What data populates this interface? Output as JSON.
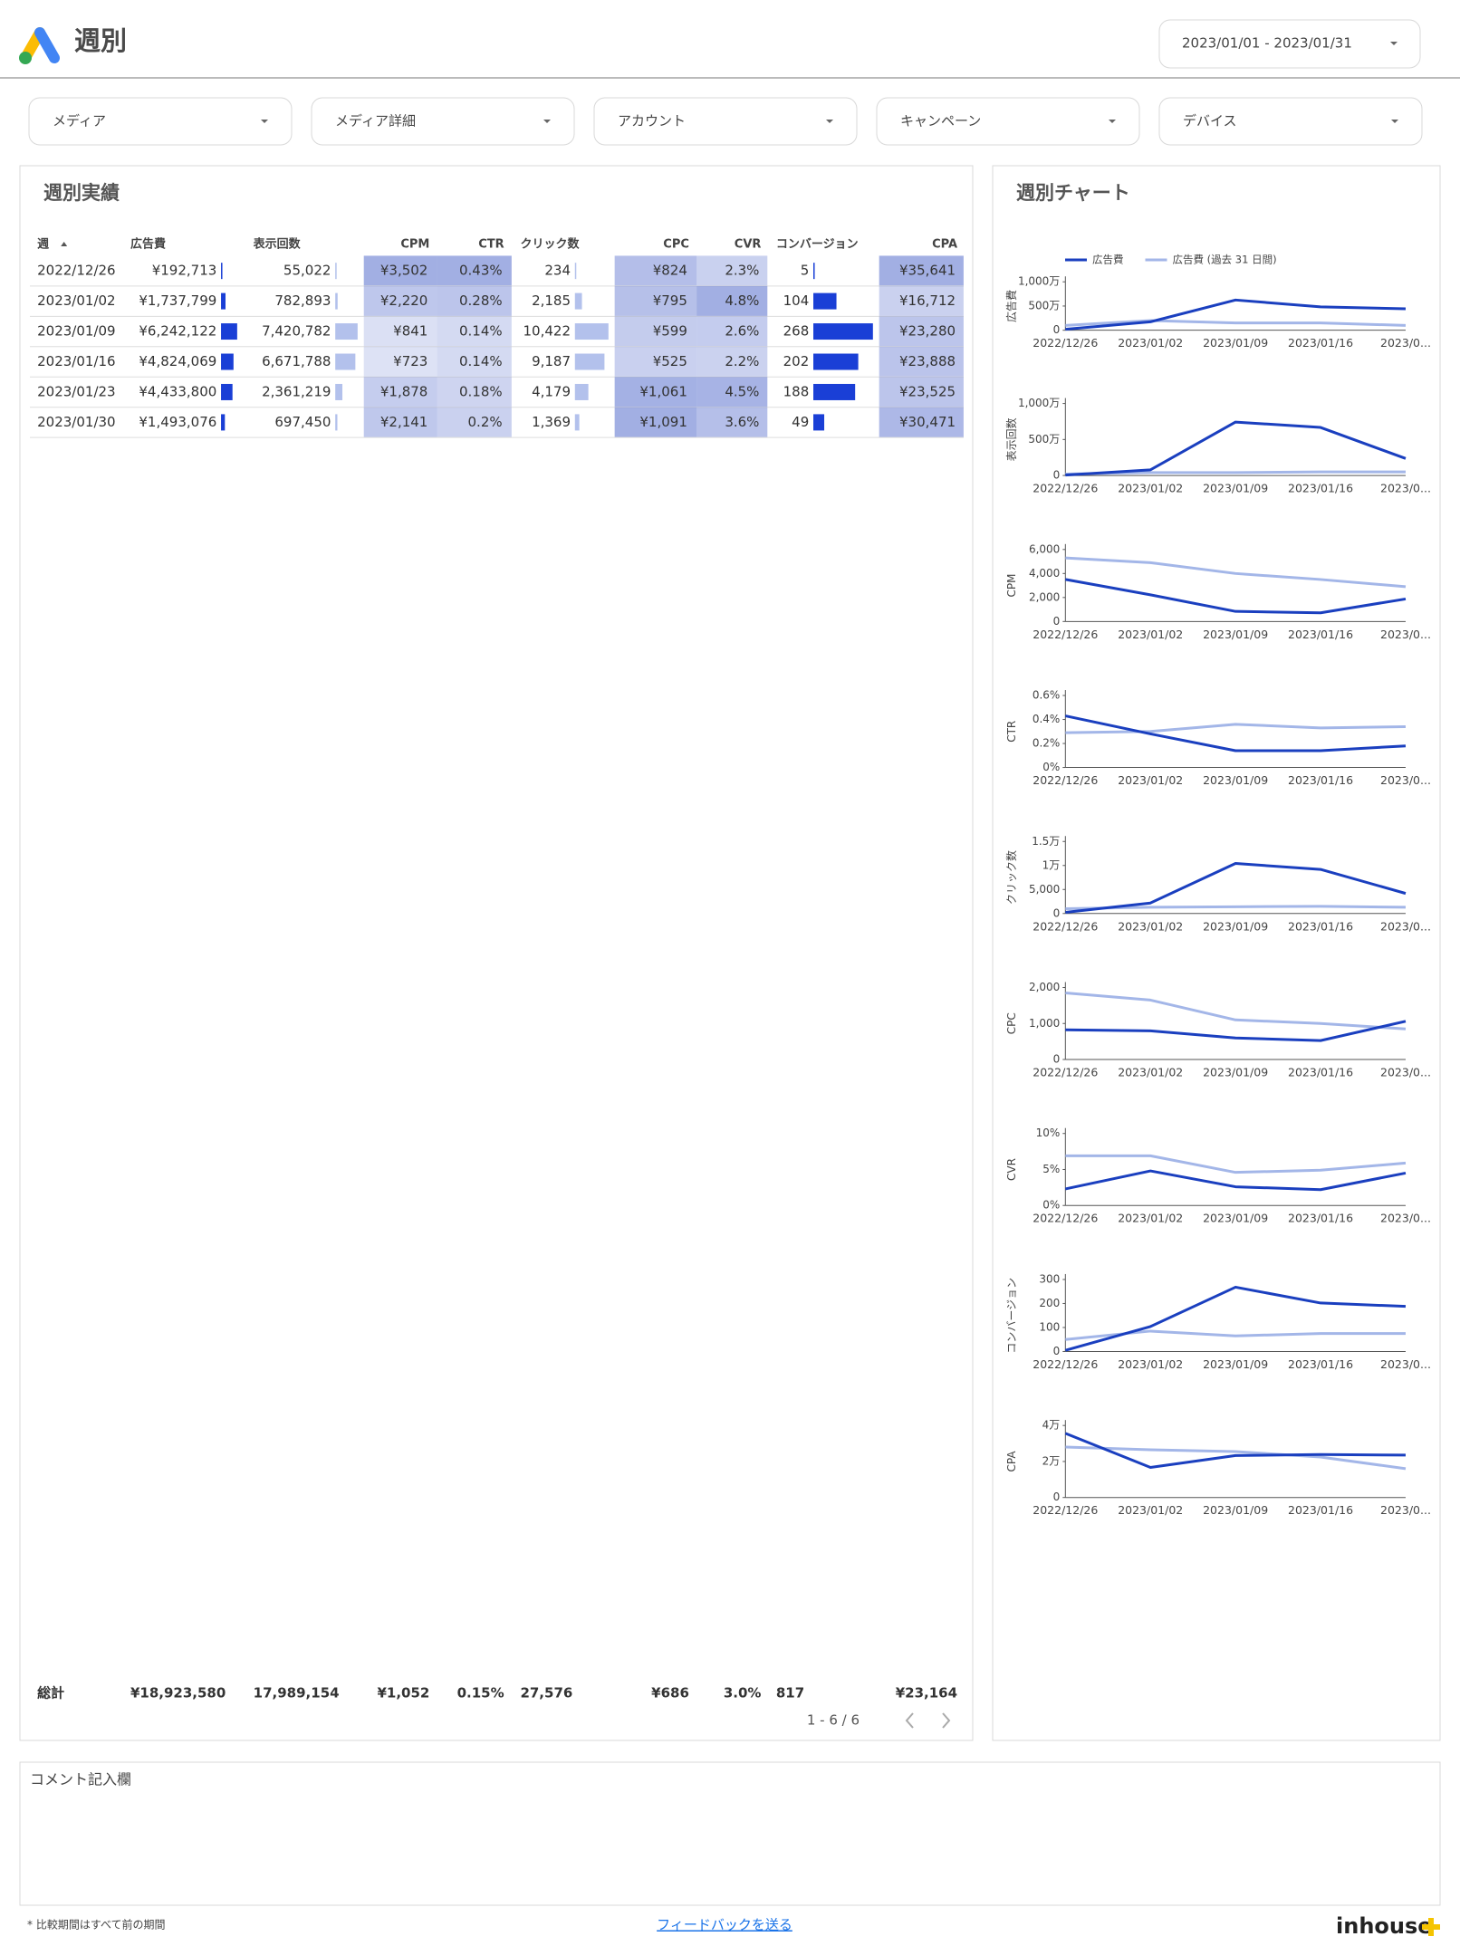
{
  "header": {
    "title": "週別",
    "date_range": "2023/01/01 - 2023/01/31"
  },
  "filters": [
    "メディア",
    "メディア詳細",
    "アカウント",
    "キャンペーン",
    "デバイス"
  ],
  "table": {
    "title": "週別実績",
    "columns": [
      "週",
      "広告費",
      "表示回数",
      "CPM",
      "CTR",
      "クリック数",
      "CPC",
      "CVR",
      "コンバージョン",
      "CPA"
    ],
    "rows": [
      [
        "2022/12/26",
        {
          "value": 192713,
          "label": "¥192,713"
        },
        {
          "value": 55022,
          "label": "55,022"
        },
        {
          "value": 3502,
          "label": "¥3,502"
        },
        {
          "value": 0.43,
          "label": "0.43%"
        },
        234,
        {
          "value": 824,
          "label": "¥824"
        },
        {
          "value": 2.3,
          "label": "2.3%"
        },
        5,
        {
          "value": 35641,
          "label": "¥35,641"
        }
      ],
      [
        "2023/01/02",
        {
          "value": 1737799,
          "label": "¥1,737,799"
        },
        {
          "value": 782893,
          "label": "782,893"
        },
        {
          "value": 2220,
          "label": "¥2,220"
        },
        {
          "value": 0.28,
          "label": "0.28%"
        },
        {
          "value": 2185,
          "label": "2,185"
        },
        {
          "value": 795,
          "label": "¥795"
        },
        {
          "value": 4.8,
          "label": "4.8%"
        },
        104,
        {
          "value": 16712,
          "label": "¥16,712"
        }
      ],
      [
        "2023/01/09",
        {
          "value": 6242122,
          "label": "¥6,242,122"
        },
        {
          "value": 7420782,
          "label": "7,420,782"
        },
        {
          "value": 841,
          "label": "¥841"
        },
        {
          "value": 0.14,
          "label": "0.14%"
        },
        {
          "value": 10422,
          "label": "10,422"
        },
        {
          "value": 599,
          "label": "¥599"
        },
        {
          "value": 2.6,
          "label": "2.6%"
        },
        268,
        {
          "value": 23280,
          "label": "¥23,280"
        }
      ],
      [
        "2023/01/16",
        {
          "value": 4824069,
          "label": "¥4,824,069"
        },
        {
          "value": 6671788,
          "label": "6,671,788"
        },
        {
          "value": 723,
          "label": "¥723"
        },
        {
          "value": 0.14,
          "label": "0.14%"
        },
        {
          "value": 9187,
          "label": "9,187"
        },
        {
          "value": 525,
          "label": "¥525"
        },
        {
          "value": 2.2,
          "label": "2.2%"
        },
        202,
        {
          "value": 23888,
          "label": "¥23,888"
        }
      ],
      [
        "2023/01/23",
        {
          "value": 4433800,
          "label": "¥4,433,800"
        },
        {
          "value": 2361219,
          "label": "2,361,219"
        },
        {
          "value": 1878,
          "label": "¥1,878"
        },
        {
          "value": 0.18,
          "label": "0.18%"
        },
        {
          "value": 4179,
          "label": "4,179"
        },
        {
          "value": 1061,
          "label": "¥1,061"
        },
        {
          "value": 4.5,
          "label": "4.5%"
        },
        188,
        {
          "value": 23525,
          "label": "¥23,525"
        }
      ],
      [
        "2023/01/30",
        {
          "value": 1493076,
          "label": "¥1,493,076"
        },
        {
          "value": 697450,
          "label": "697,450"
        },
        {
          "value": 2141,
          "label": "¥2,141"
        },
        {
          "value": 0.2,
          "label": "0.2%"
        },
        {
          "value": 1369,
          "label": "1,369"
        },
        {
          "value": 1091,
          "label": "¥1,091"
        },
        {
          "value": 3.6,
          "label": "3.6%"
        },
        49,
        {
          "value": 30471,
          "label": "¥30,471"
        }
      ]
    ],
    "totals": [
      "総計",
      "¥18,923,580",
      "17,989,154",
      "¥1,052",
      "0.15%",
      "27,576",
      "¥686",
      "3.0%",
      "817",
      "¥23,164"
    ],
    "pagination": "1 - 6 / 6"
  },
  "chart_panel": {
    "title": "週別チャート"
  },
  "chart_data": [
    {
      "type": "line",
      "y_label": "広告費",
      "categories": [
        "2022/12/26",
        "2023/01/02",
        "2023/01/09",
        "2023/01/16",
        "2023/0..."
      ],
      "ylim": [
        0,
        10000000
      ],
      "yticks": [
        0,
        {
          "value": 5000000,
          "label": "500万"
        },
        {
          "value": 10000000,
          "label": "1,000万"
        }
      ],
      "series": [
        {
          "name": "広告費 (過去 31 日間)",
          "color": "#a3b6e8",
          "values": [
            1000000,
            2000000,
            1500000,
            1500000,
            1000000
          ]
        },
        {
          "name": "広告費",
          "color": "#1a3fbf",
          "values": [
            192713,
            1737799,
            6242122,
            4824069,
            4433800
          ]
        }
      ]
    },
    {
      "type": "line",
      "y_label": "表示回数",
      "categories": [
        "2022/12/26",
        "2023/01/02",
        "2023/01/09",
        "2023/01/16",
        "2023/0..."
      ],
      "ylim": [
        0,
        10000000
      ],
      "yticks": [
        0,
        {
          "value": 5000000,
          "label": "500万"
        },
        {
          "value": 10000000,
          "label": "1,000万"
        }
      ],
      "series": [
        {
          "color": "#a3b6e8",
          "values": [
            200000,
            400000,
            400000,
            500000,
            500000
          ]
        },
        {
          "color": "#1a3fbf",
          "values": [
            55022,
            782893,
            7420782,
            6671788,
            2361219
          ]
        }
      ]
    },
    {
      "type": "line",
      "y_label": "CPM",
      "categories": [
        "2022/12/26",
        "2023/01/02",
        "2023/01/09",
        "2023/01/16",
        "2023/0..."
      ],
      "ylim": [
        0,
        6000
      ],
      "yticks": [
        0,
        {
          "value": 2000,
          "label": "2,000"
        },
        {
          "value": 4000,
          "label": "4,000"
        },
        {
          "value": 6000,
          "label": "6,000"
        }
      ],
      "series": [
        {
          "color": "#a3b6e8",
          "values": [
            5300,
            4900,
            4000,
            3500,
            2900
          ]
        },
        {
          "color": "#1a3fbf",
          "values": [
            3502,
            2220,
            841,
            723,
            1878
          ]
        }
      ]
    },
    {
      "type": "line",
      "y_label": "CTR",
      "categories": [
        "2022/12/26",
        "2023/01/02",
        "2023/01/09",
        "2023/01/16",
        "2023/0..."
      ],
      "ylim": [
        0,
        0.6
      ],
      "yticks": [
        {
          "value": 0,
          "label": "0%"
        },
        {
          "value": 0.2,
          "label": "0.2%"
        },
        {
          "value": 0.4,
          "label": "0.4%"
        },
        {
          "value": 0.6,
          "label": "0.6%"
        }
      ],
      "series": [
        {
          "color": "#a3b6e8",
          "values": [
            0.29,
            0.3,
            0.36,
            0.33,
            0.34
          ]
        },
        {
          "color": "#1a3fbf",
          "values": [
            0.43,
            0.28,
            0.14,
            0.14,
            0.18
          ]
        }
      ]
    },
    {
      "type": "line",
      "y_label": "クリック数",
      "categories": [
        "2022/12/26",
        "2023/01/02",
        "2023/01/09",
        "2023/01/16",
        "2023/0..."
      ],
      "ylim": [
        0,
        15000
      ],
      "yticks": [
        0,
        {
          "value": 5000,
          "label": "5,000"
        },
        {
          "value": 10000,
          "label": "1万"
        },
        {
          "value": 15000,
          "label": "1.5万"
        }
      ],
      "series": [
        {
          "color": "#a3b6e8",
          "values": [
            1000,
            1300,
            1400,
            1500,
            1300
          ]
        },
        {
          "color": "#1a3fbf",
          "values": [
            234,
            2185,
            10422,
            9187,
            4179
          ]
        }
      ]
    },
    {
      "type": "line",
      "y_label": "CPC",
      "categories": [
        "2022/12/26",
        "2023/01/02",
        "2023/01/09",
        "2023/01/16",
        "2023/0..."
      ],
      "ylim": [
        0,
        2000
      ],
      "yticks": [
        0,
        {
          "value": 1000,
          "label": "1,000"
        },
        {
          "value": 2000,
          "label": "2,000"
        }
      ],
      "series": [
        {
          "color": "#a3b6e8",
          "values": [
            1850,
            1650,
            1100,
            1000,
            850
          ]
        },
        {
          "color": "#1a3fbf",
          "values": [
            824,
            795,
            599,
            525,
            1061
          ]
        }
      ]
    },
    {
      "type": "line",
      "y_label": "CVR",
      "categories": [
        "2022/12/26",
        "2023/01/02",
        "2023/01/09",
        "2023/01/16",
        "2023/0..."
      ],
      "ylim": [
        0,
        10
      ],
      "yticks": [
        {
          "value": 0,
          "label": "0%"
        },
        {
          "value": 5,
          "label": "5%"
        },
        {
          "value": 10,
          "label": "10%"
        }
      ],
      "series": [
        {
          "color": "#a3b6e8",
          "values": [
            6.9,
            6.9,
            4.6,
            4.9,
            5.9
          ]
        },
        {
          "color": "#1a3fbf",
          "values": [
            2.3,
            4.8,
            2.6,
            2.2,
            4.5
          ]
        }
      ]
    },
    {
      "type": "line",
      "y_label": "コンバージョン",
      "categories": [
        "2022/12/26",
        "2023/01/02",
        "2023/01/09",
        "2023/01/16",
        "2023/0..."
      ],
      "ylim": [
        0,
        300
      ],
      "yticks": [
        0,
        100,
        200,
        300
      ],
      "series": [
        {
          "color": "#a3b6e8",
          "values": [
            50,
            85,
            65,
            75,
            75
          ]
        },
        {
          "color": "#1a3fbf",
          "values": [
            5,
            104,
            268,
            202,
            188
          ]
        }
      ]
    },
    {
      "type": "line",
      "y_label": "CPA",
      "categories": [
        "2022/12/26",
        "2023/01/02",
        "2023/01/09",
        "2023/01/16",
        "2023/0..."
      ],
      "ylim": [
        0,
        40000
      ],
      "yticks": [
        0,
        {
          "value": 20000,
          "label": "2万"
        },
        {
          "value": 40000,
          "label": "4万"
        }
      ],
      "series": [
        {
          "color": "#a3b6e8",
          "values": [
            28000,
            26500,
            25500,
            22500,
            16000
          ]
        },
        {
          "color": "#1a3fbf",
          "values": [
            35641,
            16712,
            23280,
            23888,
            23525
          ]
        }
      ]
    }
  ],
  "comment": {
    "title": "コメント記入欄"
  },
  "footer": {
    "note": "* 比較期間はすべて前の期間",
    "link": "フィードバックを送る",
    "brand": "inhouse"
  }
}
